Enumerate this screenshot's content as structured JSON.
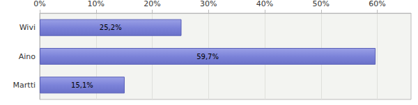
{
  "chart_data": {
    "type": "bar",
    "orientation": "horizontal",
    "categories": [
      "Wivi",
      "Aino",
      "Martti"
    ],
    "values": [
      25.2,
      59.7,
      15.1
    ],
    "value_labels": [
      "25,2%",
      "59,7%",
      "15,1%"
    ],
    "data_labels": true,
    "color": "#7c83d9",
    "xlim": [
      0,
      66
    ],
    "xticks": [
      {
        "value": 0,
        "label": "0%"
      },
      {
        "value": 10,
        "label": "10%"
      },
      {
        "value": 20,
        "label": "20%"
      },
      {
        "value": 30,
        "label": "30%"
      },
      {
        "value": 40,
        "label": "40%"
      },
      {
        "value": 50,
        "label": "50%"
      },
      {
        "value": 60,
        "label": "60%"
      }
    ],
    "grid": true
  }
}
